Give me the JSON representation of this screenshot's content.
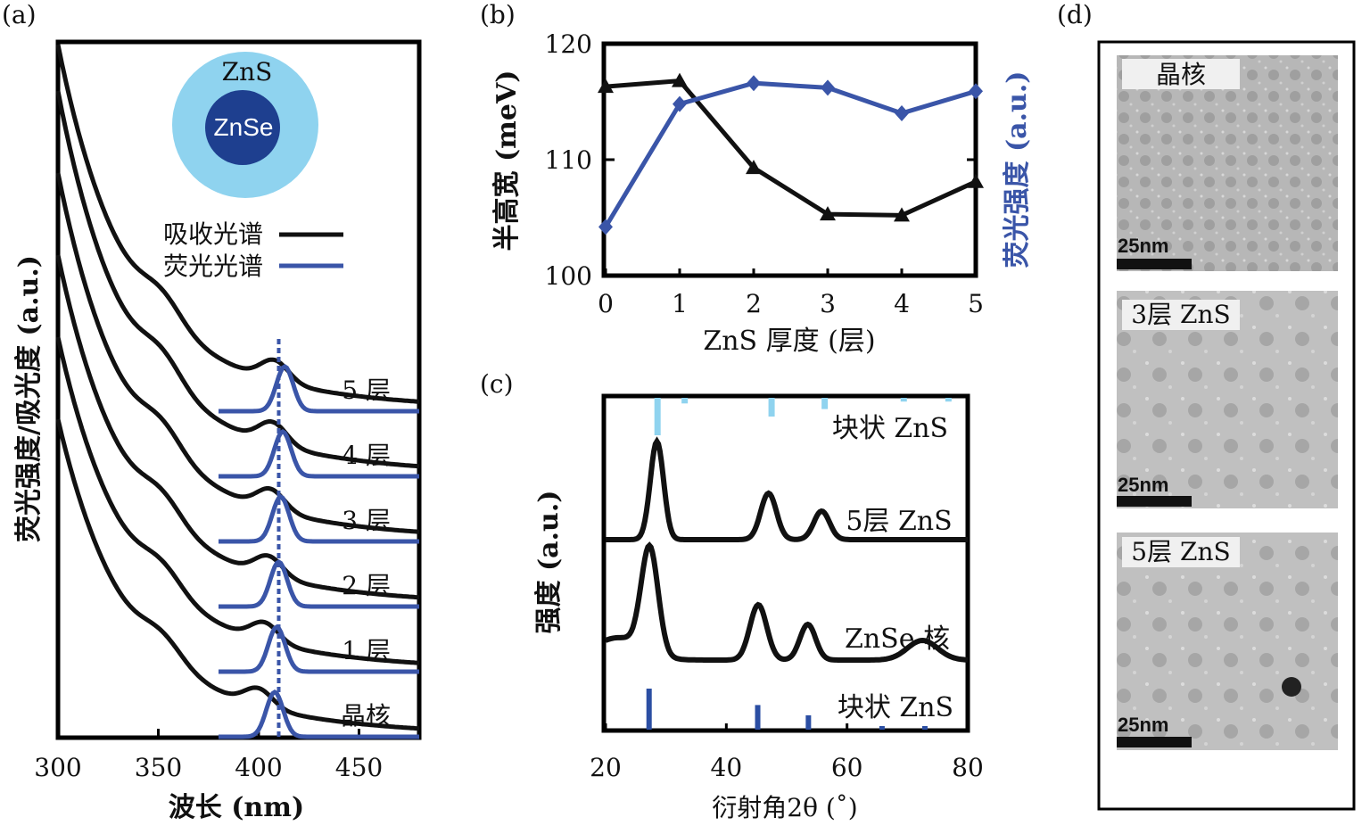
{
  "colors": {
    "absorption": "#111111",
    "fluorescence": "#3a55a8",
    "core": "#1e3f8f",
    "shell": "#8fd3ef",
    "bulk_top": "#8fd3ef",
    "bulk_bottom": "#2b4ea3"
  },
  "panel_labels": {
    "a": "(a)",
    "b": "(b)",
    "c": "(c)",
    "d": "(d)"
  },
  "chart_data": [
    {
      "panel": "a",
      "type": "line",
      "xlabel": "波长 (nm)",
      "ylabel": "荧光强度/吸光度 (a.u.)",
      "xlim": [
        300,
        480
      ],
      "xticks": [
        300,
        350,
        400,
        450
      ],
      "inset": {
        "shell": "ZnS",
        "core": "ZnSe"
      },
      "legend": [
        {
          "name": "吸收光谱",
          "color": "#111111"
        },
        {
          "name": "荧光光谱",
          "color": "#3a55a8"
        }
      ],
      "reference_line_x": 410,
      "samples": [
        {
          "label": "晶核",
          "absorption_feature_nm": 400,
          "pl_peak_nm": 408
        },
        {
          "label": "1 层",
          "absorption_feature_nm": 403,
          "pl_peak_nm": 409
        },
        {
          "label": "2 层",
          "absorption_feature_nm": 405,
          "pl_peak_nm": 410
        },
        {
          "label": "3 层",
          "absorption_feature_nm": 406,
          "pl_peak_nm": 411
        },
        {
          "label": "4 层",
          "absorption_feature_nm": 407,
          "pl_peak_nm": 412
        },
        {
          "label": "5 层",
          "absorption_feature_nm": 408,
          "pl_peak_nm": 413
        }
      ]
    },
    {
      "panel": "b",
      "type": "line",
      "xlabel": "ZnS 厚度 (层)",
      "ylabel_left": "半高宽 (meV)",
      "ylabel_right": "荧光强度 (a.u.)",
      "x": [
        0,
        1,
        2,
        3,
        4,
        5
      ],
      "ylim": [
        100,
        120
      ],
      "yticks": [
        100,
        110,
        120
      ],
      "series": [
        {
          "axis": "left",
          "values": [
            116.3,
            116.8,
            109.3,
            105.3,
            105.2,
            108.1
          ],
          "color": "#111111",
          "marker": "triangle"
        },
        {
          "axis": "right",
          "values_on_left_scale": [
            104.2,
            114.8,
            116.6,
            116.2,
            114.0,
            115.9
          ],
          "color": "#3a55a8",
          "marker": "diamond"
        }
      ]
    },
    {
      "panel": "c",
      "type": "line",
      "xlabel": "衍射角2θ (˚)",
      "ylabel": "强度 (a.u.)",
      "xlim": [
        20,
        80
      ],
      "xticks": [
        20,
        40,
        60,
        80
      ],
      "reference_top": {
        "label": "块状 ZnS",
        "peaks_2theta": [
          28.6,
          33.1,
          47.5,
          56.3,
          69.4,
          76.8
        ],
        "relative_heights": [
          1.0,
          0.15,
          0.5,
          0.3,
          0.1,
          0.1
        ]
      },
      "patterns": [
        {
          "label": "5层 ZnS",
          "peaks_2theta": [
            28.5,
            47.0,
            55.8
          ]
        },
        {
          "label": "ZnSe 核",
          "peaks_2theta": [
            27.3,
            45.3,
            53.5,
            72.5
          ]
        }
      ],
      "reference_bottom": {
        "label": "块状 ZnS",
        "peaks_2theta": [
          27.2,
          45.2,
          53.6,
          65.8,
          72.9
        ],
        "relative_heights": [
          1.0,
          0.6,
          0.35,
          0.05,
          0.05
        ]
      }
    }
  ],
  "tem": {
    "panels": [
      {
        "label": "晶核",
        "scale": "25nm"
      },
      {
        "label": "3层 ZnS",
        "scale": "25nm"
      },
      {
        "label": "5层 ZnS",
        "scale": "25nm"
      }
    ]
  }
}
